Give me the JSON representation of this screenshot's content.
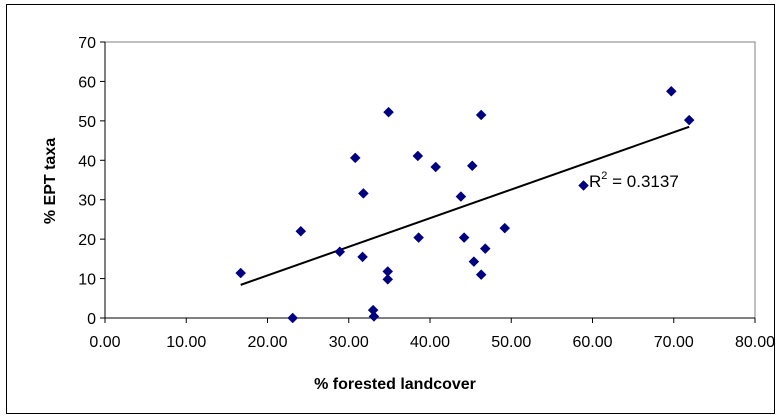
{
  "chart_data": {
    "type": "scatter",
    "title": "",
    "xlabel": "% forested landcover",
    "ylabel": "% EPT taxa",
    "xlim": [
      0,
      80
    ],
    "ylim": [
      0,
      70
    ],
    "x_ticks": [
      "0.00",
      "10.00",
      "20.00",
      "30.00",
      "40.00",
      "50.00",
      "60.00",
      "70.00",
      "80.00"
    ],
    "y_ticks": [
      "0",
      "10",
      "20",
      "30",
      "40",
      "50",
      "60",
      "70"
    ],
    "grid": false,
    "legend": "none",
    "marker_color": "#000080",
    "points": [
      {
        "x": 16.7,
        "y": 11.4
      },
      {
        "x": 23.1,
        "y": 0.0
      },
      {
        "x": 24.1,
        "y": 22.0
      },
      {
        "x": 28.9,
        "y": 16.8
      },
      {
        "x": 30.8,
        "y": 40.6
      },
      {
        "x": 31.7,
        "y": 15.5
      },
      {
        "x": 31.8,
        "y": 31.6
      },
      {
        "x": 33.0,
        "y": 2.0
      },
      {
        "x": 33.1,
        "y": 0.4
      },
      {
        "x": 34.8,
        "y": 11.8
      },
      {
        "x": 34.8,
        "y": 9.8
      },
      {
        "x": 34.9,
        "y": 52.2
      },
      {
        "x": 38.5,
        "y": 41.1
      },
      {
        "x": 38.6,
        "y": 20.4
      },
      {
        "x": 40.7,
        "y": 38.3
      },
      {
        "x": 43.8,
        "y": 30.8
      },
      {
        "x": 44.2,
        "y": 20.4
      },
      {
        "x": 45.2,
        "y": 38.6
      },
      {
        "x": 45.4,
        "y": 14.3
      },
      {
        "x": 46.3,
        "y": 51.5
      },
      {
        "x": 46.3,
        "y": 11.0
      },
      {
        "x": 46.8,
        "y": 17.6
      },
      {
        "x": 49.2,
        "y": 22.8
      },
      {
        "x": 58.9,
        "y": 33.6
      },
      {
        "x": 69.7,
        "y": 57.5
      },
      {
        "x": 71.9,
        "y": 50.2
      }
    ],
    "trendline": {
      "type": "linear",
      "x": [
        16.7,
        71.9
      ],
      "y": [
        8.4,
        48.5
      ],
      "color": "#000000"
    },
    "annotation": {
      "base": "R",
      "sup": "2",
      "text": " = 0.3137"
    }
  }
}
